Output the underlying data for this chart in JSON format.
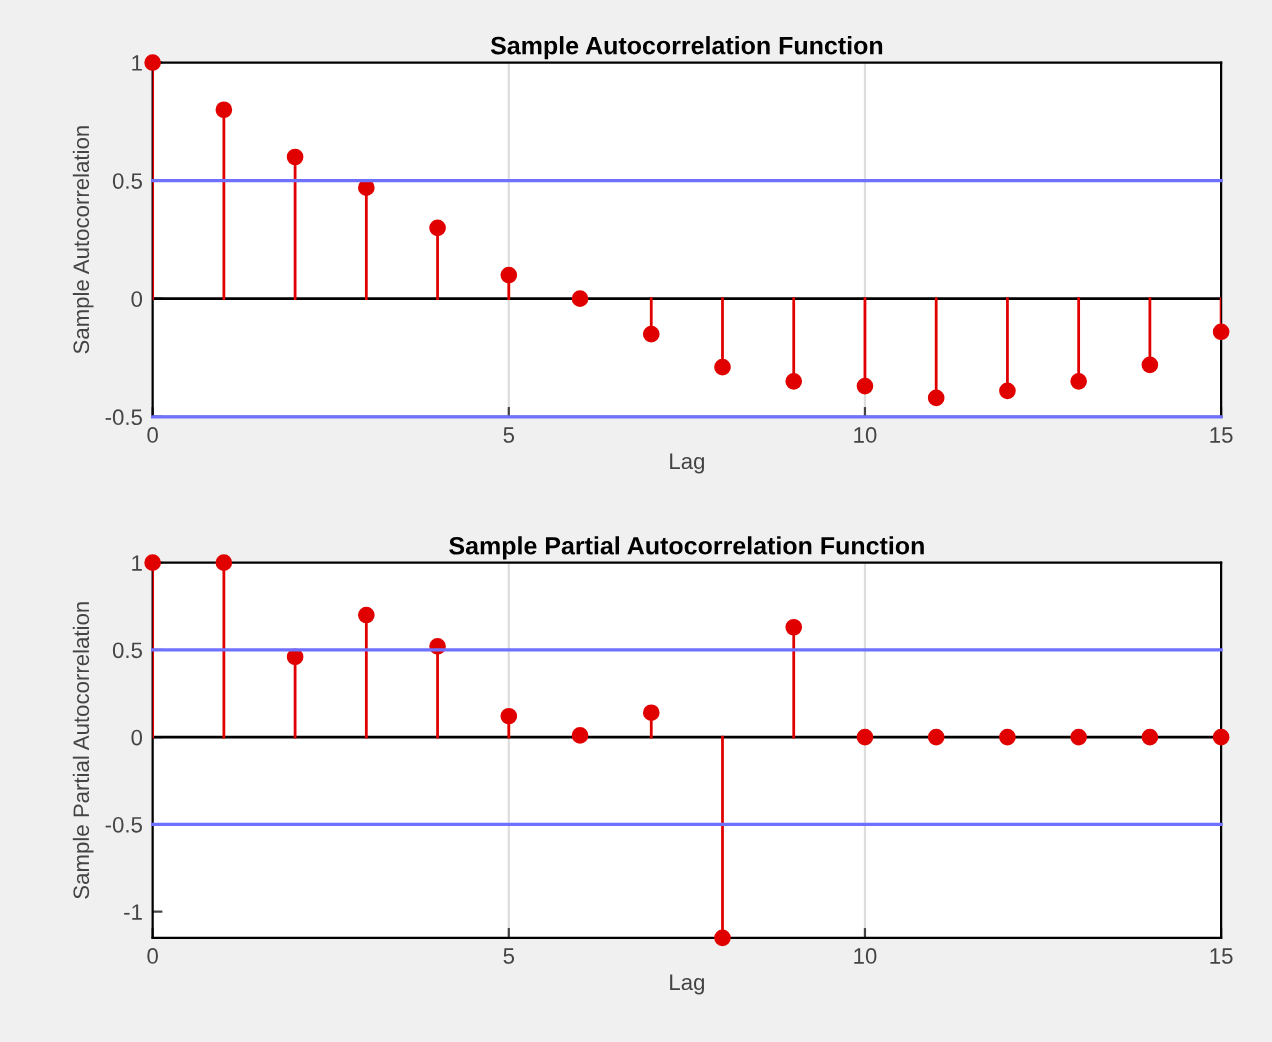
{
  "chart_data": [
    {
      "type": "lollipop",
      "title": "Sample Autocorrelation Function",
      "xlabel": "Lag",
      "ylabel": "Sample Autocorrelation",
      "x": [
        0,
        1,
        2,
        3,
        4,
        5,
        6,
        7,
        8,
        9,
        10,
        11,
        12,
        13,
        14,
        15
      ],
      "series": [
        {
          "color": "#e00000",
          "values": [
            1,
            0.8,
            0.6,
            0.47,
            0.3,
            0.1,
            0,
            -0.15,
            -0.29,
            -0.35,
            -0.37,
            -0.42,
            -0.39,
            -0.35,
            -0.28,
            -0.14
          ]
        }
      ],
      "xlim": [
        0,
        15
      ],
      "xticks": [
        0,
        5,
        10,
        15
      ],
      "ylim": [
        -0.5,
        1
      ],
      "yticks": [
        -0.5,
        0,
        0.5,
        1
      ],
      "ref_lines": [
        {
          "axis": "y",
          "value": 0.5,
          "color": "#7070ff"
        },
        {
          "axis": "y",
          "value": -0.5,
          "color": "#7070ff"
        }
      ],
      "grid": "x",
      "marker": "circle"
    },
    {
      "type": "lollipop",
      "title": "Sample Partial Autocorrelation Function",
      "xlabel": "Lag",
      "ylabel": "Sample Partial Autocorrelation",
      "x": [
        0,
        1,
        2,
        3,
        4,
        5,
        6,
        7,
        8,
        9,
        10,
        11,
        12,
        13,
        14,
        15
      ],
      "series": [
        {
          "color": "#e00000",
          "values": [
            1,
            1,
            0.46,
            0.7,
            0.52,
            0.12,
            0.01,
            0.14,
            -1.15,
            0.63,
            0,
            0,
            0,
            0,
            0,
            0
          ]
        }
      ],
      "xlim": [
        0,
        15
      ],
      "xticks": [
        0,
        5,
        10,
        15
      ],
      "ylim": [
        -1.15,
        1
      ],
      "yticks": [
        -1,
        -0.5,
        0,
        0.5,
        1
      ],
      "ref_lines": [
        {
          "axis": "y",
          "value": 0.5,
          "color": "#7070ff"
        },
        {
          "axis": "y",
          "value": -0.5,
          "color": "#7070ff"
        }
      ],
      "grid": "x",
      "marker": "circle"
    }
  ]
}
